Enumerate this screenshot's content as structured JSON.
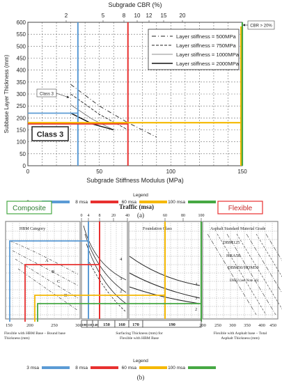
{
  "colors": {
    "msa3": "#5b9bd5",
    "msa8": "#e8302f",
    "msa60": "#f5b800",
    "msa100": "#46a843",
    "grid": "#7f7f7f"
  },
  "top": {
    "top_axis_title": "Subgrade CBR (%)",
    "top_ticks": [
      "2",
      "5",
      "8",
      "10",
      "12",
      "15",
      "20"
    ],
    "y_label": "Subbase Layer Thickness (mm)",
    "y_ticks": [
      "0",
      "50",
      "100",
      "150",
      "200",
      "250",
      "300",
      "350",
      "400",
      "450",
      "500",
      "550",
      "600"
    ],
    "x_label": "Subgrade Stiffness Modulus (MPa)",
    "x_ticks": [
      "0",
      "50",
      "100",
      "150"
    ],
    "legend_entries": [
      "Layer stiffness = 500MPa",
      "Layer stiffness = 750MPa",
      "Layer stiffness = 1000MPa",
      "Layer stiffness = 2000MPa"
    ],
    "class_label": "Class 3",
    "class_callout": "Class 3",
    "cbr_note": "CBR > 20%"
  },
  "legend": {
    "title": "Legend",
    "items": [
      "3 msa",
      "8 msa",
      "60 msa",
      "100 msa"
    ]
  },
  "caption_a": "(a)",
  "bottom": {
    "composite_label": "Composite",
    "flexible_label": "Flexible",
    "traffic_title": "Traffic (msa)",
    "traffic_ticks": [
      "0",
      "4",
      "8",
      "20",
      "40",
      "60",
      "80",
      "100"
    ],
    "hbm_category": "HBM Category",
    "foundation_class": "Foundation Class",
    "asphalt_grade": "Asphalt Standard Material Grade",
    "hbm_curves": [
      "A",
      "B",
      "C",
      "D"
    ],
    "foundation_curves": [
      "4",
      "3",
      "2"
    ],
    "foundation_right": [
      "4",
      "3",
      "2"
    ],
    "materials": [
      "DBM125",
      "HRA50",
      "DBM50/HDM50",
      "EME2 (see Note 16)"
    ],
    "left_axis_ticks": [
      "150",
      "200",
      "250",
      "300"
    ],
    "left_axis_label": "Flexible with HBM Base – Bound base Thickness (mm)",
    "surfacing_row": [
      "100",
      "110",
      "140",
      "150",
      "160",
      "170",
      "190"
    ],
    "surfacing_label": "Surfacing Thickness (mm) for Flexible with HBM Base",
    "right_axis_ticks": [
      "200",
      "250",
      "300",
      "350",
      "400",
      "450"
    ],
    "right_axis_label": "Flexible with Asphalt base – Total Asphalt Thickness (mm)"
  },
  "caption_b": "(b)",
  "chart_data": [
    {
      "type": "line",
      "title": "",
      "xlabel": "Subgrade Stiffness Modulus (MPa)",
      "ylabel": "Subbase Layer Thickness (mm)",
      "top_xlabel": "Subgrade CBR (%)",
      "xlim": [
        0,
        150
      ],
      "ylim": [
        0,
        600
      ],
      "grid": true,
      "legend_position": "top-right",
      "series": [
        {
          "name": "Layer stiffness = 500MPa",
          "x": [
            30,
            50,
            70,
            90
          ],
          "y": [
            340,
            250,
            180,
            120
          ]
        },
        {
          "name": "Layer stiffness = 750MPa",
          "x": [
            30,
            50,
            70
          ],
          "y": [
            300,
            215,
            150
          ]
        },
        {
          "name": "Layer stiffness = 1000MPa",
          "x": [
            30,
            45,
            60
          ],
          "y": [
            255,
            195,
            150
          ]
        },
        {
          "name": "Layer stiffness = 2000MPa",
          "x": [
            30,
            45,
            60
          ],
          "y": [
            220,
            175,
            150
          ]
        }
      ],
      "design_lines": [
        {
          "name": "3 msa",
          "x": 35,
          "y": 220
        },
        {
          "name": "8 msa",
          "x": 70,
          "y": 175
        },
        {
          "name": "60 msa",
          "x": 150,
          "y": 180
        },
        {
          "name": "100 msa",
          "x": 150,
          "y": 600
        }
      ],
      "annotations": [
        "Class 3",
        "CBR > 20%"
      ]
    },
    {
      "type": "line",
      "title": "",
      "traffic_axis": {
        "label": "Traffic (msa)",
        "ticks": [
          0,
          4,
          8,
          20,
          40,
          60,
          80,
          100
        ]
      },
      "left_axis": {
        "label": "Flexible with HBM Base – Bound base Thickness (mm)",
        "ticks": [
          150,
          200,
          250,
          300
        ]
      },
      "right_axis": {
        "label": "Flexible with Asphalt base – Total Asphalt Thickness (mm)",
        "ticks": [
          200,
          250,
          300,
          350,
          400,
          450
        ]
      },
      "surfacing_thickness_mm": [
        100,
        110,
        140,
        150,
        160,
        170,
        190
      ],
      "design_lines": [
        {
          "name": "3 msa",
          "traffic": 3
        },
        {
          "name": "8 msa",
          "traffic": 8
        },
        {
          "name": "60 msa",
          "traffic": 60
        },
        {
          "name": "100 msa",
          "traffic": 100
        }
      ]
    }
  ]
}
